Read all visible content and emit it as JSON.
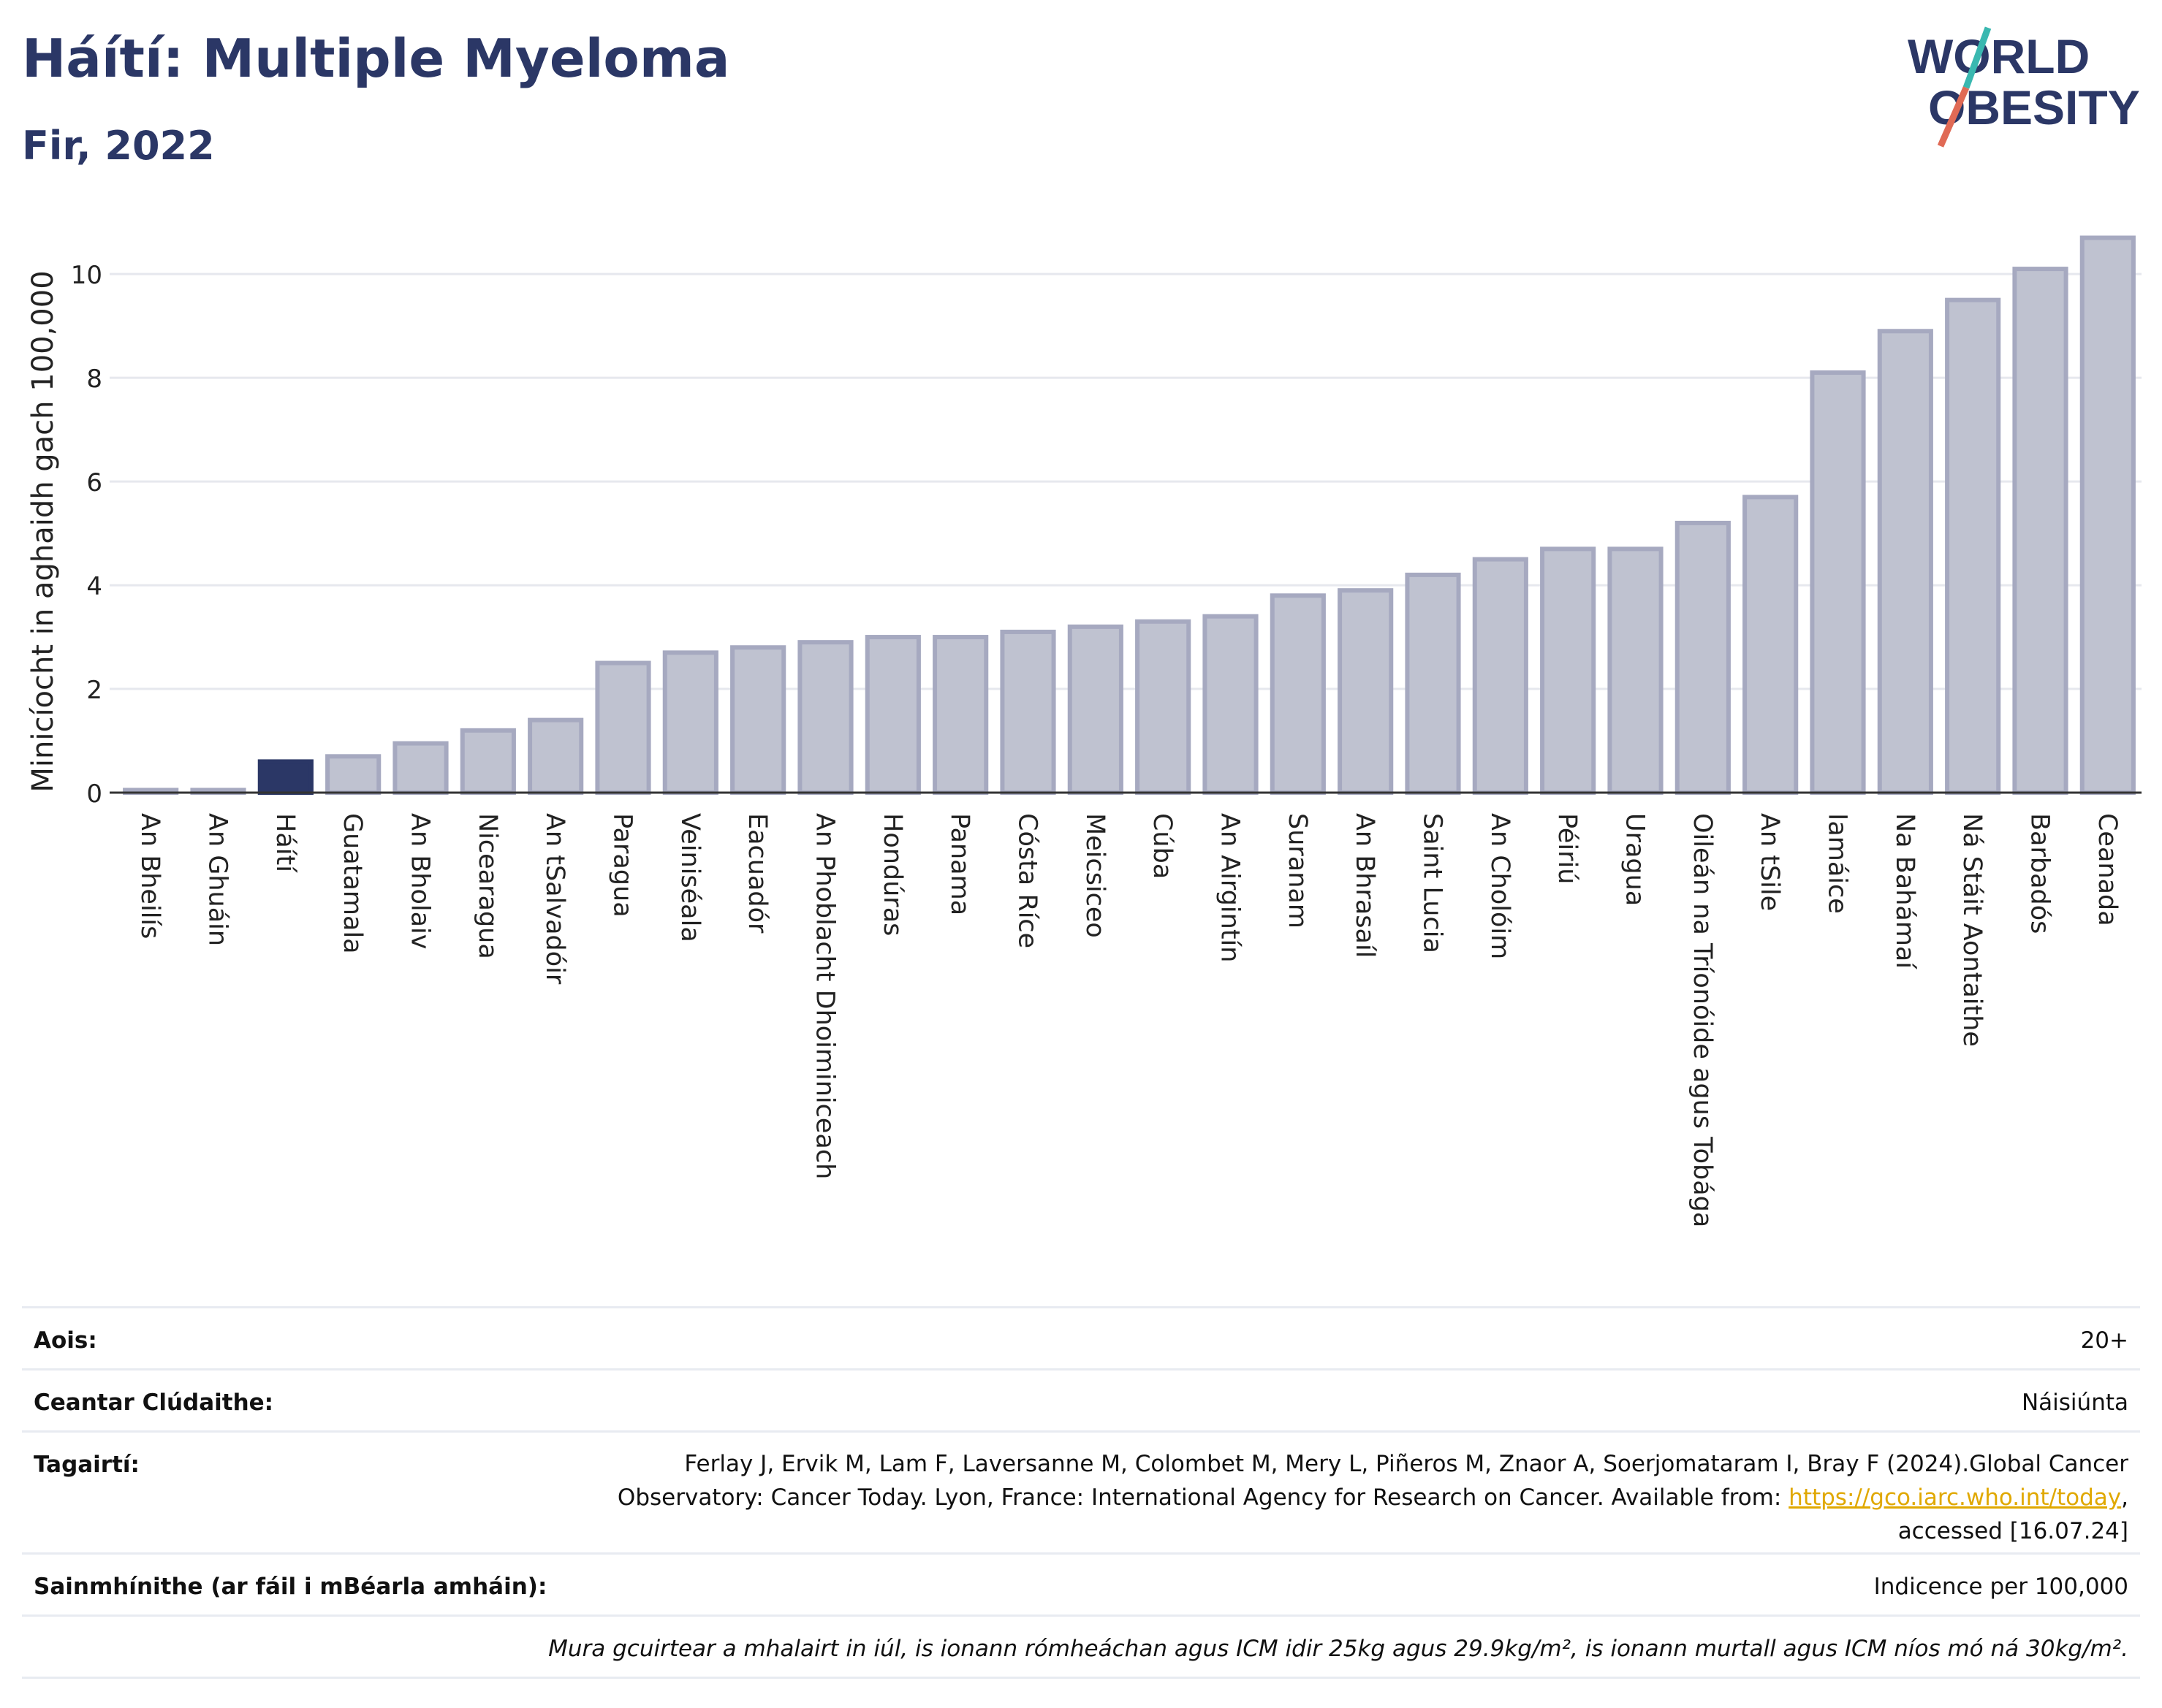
{
  "header": {
    "title": "Háítí: Multiple Myeloma",
    "subtitle": "Fir, 2022",
    "logo_line1": "WORLD",
    "logo_line2": "OBESITY"
  },
  "colors": {
    "bar": "#bfc2d0",
    "bar_border": "#a6a9c0",
    "highlight": "#2b3766",
    "logo_slash_top": "#3ab8b0",
    "logo_slash_bottom": "#e06a55"
  },
  "chart_data": {
    "type": "bar",
    "ylabel": "Minicíocht in aghaidh gach 100,000",
    "xlabel": "",
    "ylim": [
      0,
      11.2
    ],
    "yticks": [
      0,
      2,
      4,
      6,
      8,
      10
    ],
    "grid": true,
    "highlight": "Háítí",
    "categories": [
      "An Bheilís",
      "An Ghuáin",
      "Háítí",
      "Guatamala",
      "An Bholaiv",
      "Nicearagua",
      "An tSalvadóir",
      "Paragua",
      "Veiniséala",
      "Eacuadór",
      "An Phoblacht Dhoiminiceach",
      "Hondúras",
      "Panama",
      "Cósta Ríce",
      "Meicsiceo",
      "Cúba",
      "An Airgintín",
      "Suranam",
      "An Bhrasaíl",
      "Saint Lucia",
      "An Cholóim",
      "Péiriú",
      "Uragua",
      "Oileán na Tríonóide agus Tobága",
      "An tSile",
      "Iamáice",
      "Na Bahámaí",
      "Ná Stáit Aontaithe",
      "Barbadós",
      "Ceanada"
    ],
    "values": [
      0.05,
      0.05,
      0.6,
      0.7,
      0.95,
      1.2,
      1.4,
      2.5,
      2.7,
      2.8,
      2.9,
      3.0,
      3.0,
      3.1,
      3.2,
      3.3,
      3.4,
      3.8,
      3.9,
      4.2,
      4.5,
      4.7,
      4.7,
      5.2,
      5.7,
      8.1,
      8.9,
      9.5,
      10.1,
      10.7
    ]
  },
  "info": {
    "age_label": "Aois:",
    "age_value": "20+",
    "area_label": "Ceantar Clúdaithe:",
    "area_value": "Náisiúnta",
    "ref_label": "Tagairtí:",
    "ref_text_1": "Ferlay J, Ervik M, Lam F, Laversanne M, Colombet M, Mery L, Piñeros M, Znaor A, Soerjomataram I, Bray F (2024).Global Cancer Observatory: Cancer Today. Lyon, France: International Agency for Research on Cancer. Available from: ",
    "ref_link": "https://gco.iarc.who.int/today",
    "ref_text_2": ", accessed [16.07.24]",
    "def_label": "Sainmhínithe (ar fáil i mBéarla amháin):",
    "def_value": "Indicence per 100,000",
    "note": "Mura gcuirtear a mhalairt in iúl, is ionann rómheáchan agus ICM idir 25kg agus 29.9kg/m², is ionann murtall agus ICM níos mó ná 30kg/m²."
  }
}
